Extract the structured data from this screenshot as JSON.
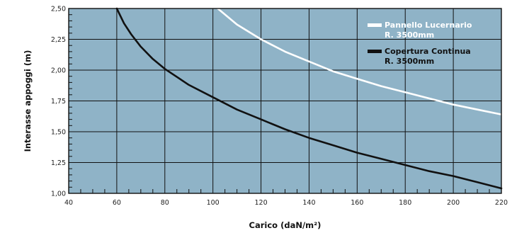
{
  "chart_data": {
    "type": "line",
    "xlabel": "Carico (daN/m²)",
    "ylabel": "Interasse appoggi (m)",
    "xlim": [
      40,
      220
    ],
    "ylim": [
      1.0,
      2.5
    ],
    "x_ticks": [
      "40",
      "60",
      "80",
      "100",
      "120",
      "140",
      "160",
      "180",
      "200",
      "220"
    ],
    "y_ticks": [
      "1,00",
      "1,25",
      "1,50",
      "1,75",
      "2,00",
      "2,25",
      "2,50"
    ],
    "grid": true,
    "legend_position": "top-right",
    "colors": {
      "plot_bg": "#8fb3c7",
      "grid": "#111111",
      "frame": "#111111"
    },
    "series": [
      {
        "name": "Pannello Lucernario R. 3500mm",
        "legend_lines": [
          "Pannello Lucernario",
          "R. 3500mm"
        ],
        "color": "#ffffff",
        "x": [
          102,
          110,
          120,
          130,
          140,
          150,
          160,
          170,
          180,
          190,
          200,
          210,
          220
        ],
        "y": [
          2.5,
          2.37,
          2.25,
          2.15,
          2.07,
          1.99,
          1.93,
          1.87,
          1.82,
          1.77,
          1.72,
          1.68,
          1.64
        ]
      },
      {
        "name": "Copertura Continua R. 3500mm",
        "legend_lines": [
          "Copertura Continua",
          "R. 3500mm"
        ],
        "color": "#111111",
        "x": [
          60,
          63,
          66,
          70,
          75,
          80,
          90,
          100,
          110,
          120,
          130,
          140,
          150,
          160,
          170,
          180,
          190,
          200,
          210,
          220
        ],
        "y": [
          2.5,
          2.38,
          2.29,
          2.19,
          2.09,
          2.01,
          1.88,
          1.78,
          1.68,
          1.6,
          1.52,
          1.45,
          1.39,
          1.33,
          1.28,
          1.23,
          1.18,
          1.14,
          1.09,
          1.04
        ]
      }
    ]
  }
}
